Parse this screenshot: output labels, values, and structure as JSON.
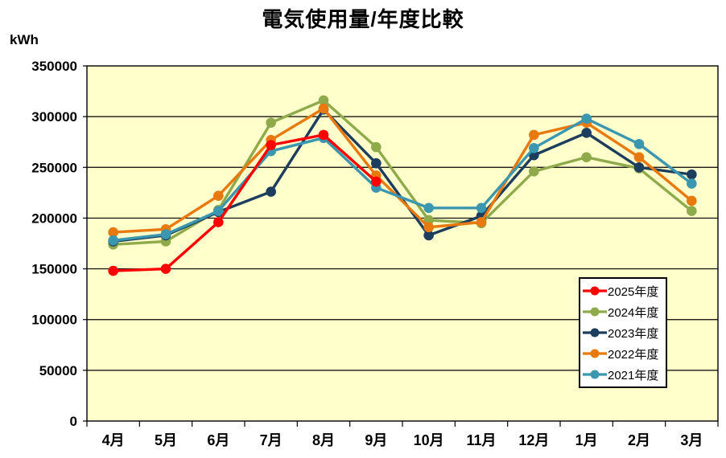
{
  "chart_data": {
    "type": "line",
    "title": "電気使用量/年度比較",
    "ylabel": "kWh",
    "xlabel": "",
    "ylim": [
      0,
      350000
    ],
    "ytick_step": 50000,
    "grid": true,
    "plot_bg": "#ffffcc",
    "gridline_color": "#000000",
    "legend_position": "inside-right",
    "categories": [
      "4月",
      "5月",
      "6月",
      "7月",
      "8月",
      "9月",
      "10月",
      "11月",
      "12月",
      "1月",
      "2月",
      "3月"
    ],
    "series": [
      {
        "name": "2025年度",
        "color": "#ff0000",
        "values": [
          148000,
          150000,
          196000,
          272000,
          282000,
          236000,
          null,
          null,
          null,
          null,
          null,
          null
        ]
      },
      {
        "name": "2024年度",
        "color": "#8faa4b",
        "values": [
          174000,
          177000,
          208000,
          294000,
          316000,
          270000,
          198000,
          195000,
          246000,
          260000,
          249000,
          207000
        ]
      },
      {
        "name": "2023年度",
        "color": "#1c3d5e",
        "values": [
          177000,
          183000,
          206000,
          226000,
          307000,
          254000,
          183000,
          202000,
          262000,
          284000,
          250000,
          243000
        ]
      },
      {
        "name": "2022年度",
        "color": "#e8790f",
        "values": [
          186000,
          189000,
          222000,
          277000,
          308000,
          242000,
          191000,
          196000,
          282000,
          294000,
          260000,
          217000
        ]
      },
      {
        "name": "2021年度",
        "color": "#3b96b0",
        "values": [
          178000,
          184000,
          207000,
          266000,
          279000,
          230000,
          210000,
          210000,
          269000,
          298000,
          273000,
          234000
        ]
      }
    ]
  }
}
